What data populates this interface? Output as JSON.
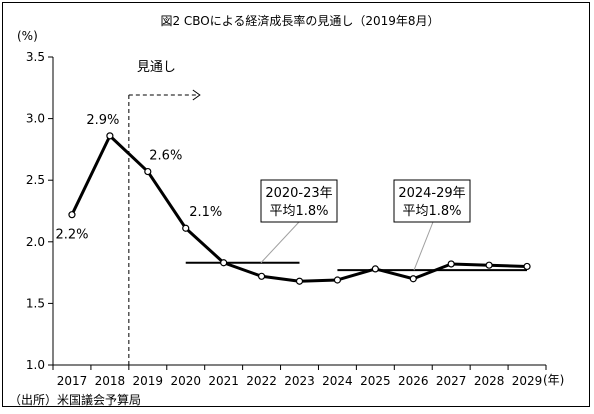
{
  "chart_data": {
    "type": "line",
    "title": "図2  CBOによる経済成長率の見通し（2019年8月）",
    "y_unit": "(%)",
    "x_unit": "(年)",
    "ylim": [
      1.0,
      3.5
    ],
    "yticks": [
      "1.0",
      "1.5",
      "2.0",
      "2.5",
      "3.0",
      "3.5"
    ],
    "ytick_values": [
      1.0,
      1.5,
      2.0,
      2.5,
      3.0,
      3.5
    ],
    "categories": [
      "2017",
      "2018",
      "2019",
      "2020",
      "2021",
      "2022",
      "2023",
      "2024",
      "2025",
      "2026",
      "2027",
      "2028",
      "2029"
    ],
    "series": [
      {
        "values": [
          2.22,
          2.86,
          2.57,
          2.11,
          1.83,
          1.72,
          1.68,
          1.69,
          1.78,
          1.7,
          1.82,
          1.81,
          1.8
        ]
      }
    ],
    "data_labels": [
      {
        "index": 0,
        "text": "2.2%"
      },
      {
        "index": 1,
        "text": "2.9%"
      },
      {
        "index": 2,
        "text": "2.6%"
      },
      {
        "index": 3,
        "text": "2.1%"
      }
    ],
    "forecast_marker": {
      "after_category": "2018",
      "label": "見通し"
    },
    "averages": [
      {
        "label_line1": "2020-23年",
        "label_line2": "平均1.8%",
        "value": 1.83,
        "from": "2020",
        "to": "2023"
      },
      {
        "label_line1": "2024-29年",
        "label_line2": "平均1.8%",
        "value": 1.77,
        "from": "2024",
        "to": "2029"
      }
    ],
    "grid": false,
    "legend": "none",
    "colors": {
      "line": "#000000",
      "marker_fill": "#ffffff",
      "callout_line": "#a0a0a0"
    }
  },
  "source": "（出所）米国議会予算局"
}
